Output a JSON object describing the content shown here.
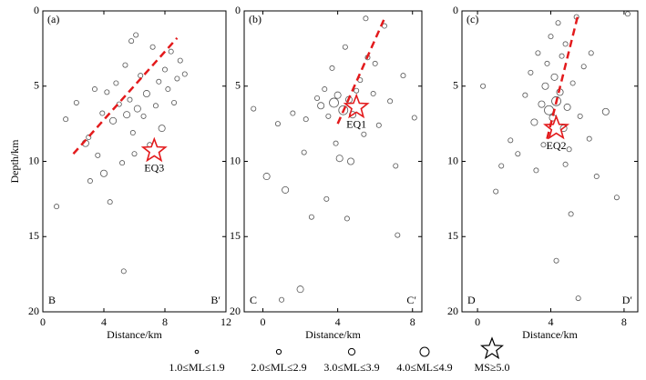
{
  "chart_data": [
    {
      "type": "scatter",
      "title": "(a)",
      "xlabel": "Distance/km",
      "ylabel": "Depth/km",
      "xlim": [
        0,
        12
      ],
      "xticks": [
        0,
        4,
        8,
        12
      ],
      "ylim": [
        0,
        20
      ],
      "yticks": [
        0,
        5,
        10,
        15,
        20
      ],
      "y_inverted": true,
      "corner_labels": [
        "B",
        "B′"
      ],
      "color": "#555555",
      "x": [
        0.9,
        1.5,
        2.2,
        2.8,
        3.1,
        3.4,
        3.6,
        3.9,
        4.2,
        4.4,
        4.6,
        4.8,
        5.0,
        5.2,
        5.4,
        5.5,
        5.7,
        5.9,
        6.1,
        6.2,
        6.4,
        6.6,
        6.8,
        7.0,
        7.2,
        7.4,
        7.6,
        7.8,
        8.0,
        8.2,
        8.4,
        8.6,
        8.8,
        9.0,
        9.3,
        5.3,
        6.0,
        3.0,
        4.0,
        5.8
      ],
      "y": [
        13.0,
        7.2,
        6.1,
        8.8,
        11.3,
        5.2,
        9.6,
        6.8,
        5.4,
        12.7,
        7.3,
        4.8,
        6.2,
        10.1,
        3.6,
        6.9,
        5.9,
        8.1,
        1.6,
        6.5,
        4.3,
        7.0,
        5.5,
        8.9,
        2.4,
        6.3,
        4.7,
        7.8,
        3.9,
        5.2,
        2.7,
        6.1,
        4.5,
        3.3,
        4.2,
        17.3,
        9.5,
        8.4,
        10.8,
        2.0
      ],
      "magnitude_class": [
        2,
        2,
        2,
        3,
        2,
        2,
        2,
        2,
        2,
        2,
        3,
        2,
        2,
        2,
        2,
        3,
        2,
        2,
        2,
        3,
        2,
        2,
        3,
        2,
        2,
        2,
        2,
        3,
        2,
        2,
        2,
        2,
        2,
        2,
        2,
        2,
        2,
        2,
        3,
        2
      ],
      "event": {
        "label": "EQ3",
        "x": 7.3,
        "y": 9.3,
        "color": "#e31a1c"
      },
      "fault_line": {
        "x": [
          2.0,
          8.8
        ],
        "y": [
          9.5,
          1.8
        ]
      }
    },
    {
      "type": "scatter",
      "title": "(b)",
      "xlabel": "Distance/km",
      "xlim": [
        -1,
        8.5
      ],
      "xticks": [
        0,
        4,
        8
      ],
      "ylim": [
        0,
        20
      ],
      "yticks": [
        0,
        5,
        10,
        15,
        20
      ],
      "y_inverted": true,
      "corner_labels": [
        "C",
        "C′"
      ],
      "color": "#555555",
      "x": [
        -0.5,
        0.2,
        0.8,
        1.2,
        1.6,
        2.0,
        2.3,
        2.6,
        2.9,
        3.1,
        3.3,
        3.5,
        3.7,
        3.8,
        4.0,
        4.1,
        4.3,
        4.4,
        4.6,
        4.8,
        5.0,
        5.2,
        5.4,
        5.6,
        5.9,
        6.2,
        6.5,
        6.8,
        7.1,
        7.5,
        8.1,
        2.2,
        1.0,
        3.4,
        4.7,
        5.5,
        6.0,
        7.2,
        4.5,
        3.9
      ],
      "y": [
        6.5,
        11.0,
        7.5,
        11.9,
        6.8,
        18.5,
        7.2,
        13.7,
        5.8,
        6.3,
        5.2,
        7.0,
        3.8,
        6.1,
        5.6,
        9.8,
        6.6,
        2.4,
        5.9,
        6.9,
        5.3,
        4.6,
        8.2,
        3.1,
        5.5,
        7.6,
        1.0,
        6.0,
        10.3,
        4.3,
        7.1,
        9.4,
        19.2,
        12.5,
        10.0,
        0.5,
        3.5,
        14.9,
        13.8,
        8.8
      ],
      "magnitude_class": [
        2,
        3,
        2,
        3,
        2,
        3,
        2,
        2,
        2,
        3,
        2,
        2,
        2,
        4,
        3,
        3,
        4,
        2,
        3,
        3,
        2,
        2,
        2,
        2,
        2,
        2,
        2,
        2,
        2,
        2,
        2,
        2,
        2,
        2,
        3,
        2,
        2,
        2,
        2,
        2
      ],
      "event": {
        "label": "EQ1",
        "x": 5.0,
        "y": 6.4,
        "color": "#e31a1c"
      },
      "fault_line": {
        "x": [
          4.0,
          6.5
        ],
        "y": [
          7.5,
          0.5
        ]
      }
    },
    {
      "type": "scatter",
      "title": "(c)",
      "xlabel": "Distance/km",
      "xlim": [
        -0.85,
        8.75
      ],
      "xticks": [
        0,
        4,
        8
      ],
      "ylim": [
        0,
        20
      ],
      "yticks": [
        0,
        5,
        10,
        15,
        20
      ],
      "y_inverted": true,
      "corner_labels": [
        "D",
        "D′"
      ],
      "color": "#555555",
      "x": [
        0.3,
        1.0,
        1.3,
        1.8,
        2.2,
        2.6,
        2.9,
        3.1,
        3.3,
        3.5,
        3.6,
        3.7,
        3.8,
        3.9,
        4.0,
        4.1,
        4.2,
        4.3,
        4.4,
        4.5,
        4.6,
        4.7,
        4.8,
        4.9,
        5.0,
        5.2,
        5.4,
        5.6,
        5.8,
        6.1,
        6.5,
        7.0,
        7.6,
        8.2,
        5.1,
        4.3,
        3.2,
        6.2,
        5.5,
        4.8
      ],
      "y": [
        5.0,
        12.0,
        10.3,
        8.6,
        9.5,
        5.6,
        4.1,
        7.4,
        2.8,
        6.2,
        8.9,
        5.0,
        3.5,
        6.6,
        1.7,
        7.1,
        4.4,
        6.0,
        0.8,
        5.4,
        3.0,
        7.8,
        2.2,
        6.4,
        9.2,
        4.8,
        0.4,
        7.0,
        3.7,
        8.5,
        11.0,
        6.7,
        12.4,
        0.2,
        13.5,
        16.6,
        10.6,
        2.8,
        19.1,
        10.2
      ],
      "magnitude_class": [
        2,
        2,
        2,
        2,
        2,
        2,
        2,
        3,
        2,
        3,
        2,
        3,
        2,
        4,
        2,
        3,
        3,
        4,
        2,
        3,
        2,
        3,
        2,
        3,
        2,
        2,
        2,
        2,
        2,
        2,
        2,
        3,
        2,
        2,
        2,
        2,
        2,
        2,
        2,
        2
      ],
      "event": {
        "label": "EQ2",
        "x": 4.3,
        "y": 7.8,
        "color": "#e31a1c"
      },
      "fault_line": {
        "x": [
          3.8,
          5.5
        ],
        "y": [
          8.5,
          0.2
        ]
      }
    }
  ],
  "legend": [
    {
      "label": "1.0≤ML≤1.9",
      "class": 1
    },
    {
      "label": "2.0≤ML≤2.9",
      "class": 2
    },
    {
      "label": "3.0≤ML≤3.9",
      "class": 3
    },
    {
      "label": "4.0≤ML≤4.9",
      "class": 4
    },
    {
      "label": "MS≥5.0",
      "marker": "star"
    }
  ]
}
